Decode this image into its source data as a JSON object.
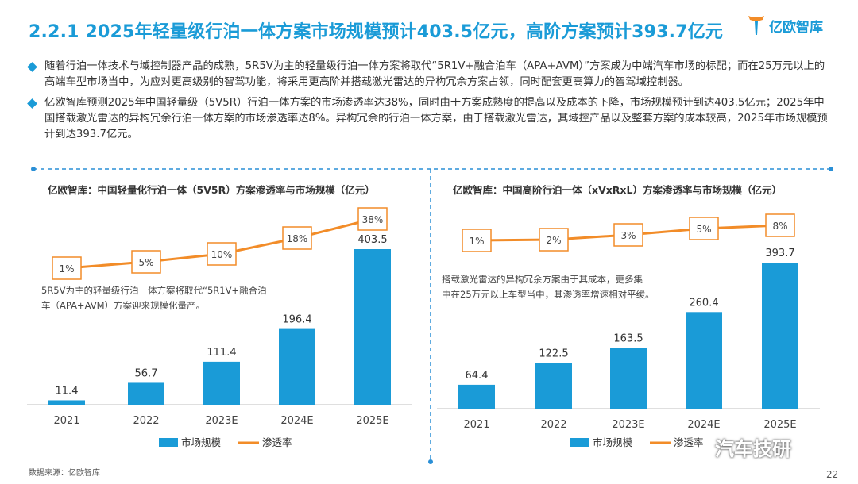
{
  "title": "2.2.1 2025年轻量级行泊一体方案市场规模预计403.5亿元，高阶方案预计393.7亿元",
  "logo_text": "亿欧智库",
  "bullets": [
    "随着行泊一体技术与域控制器产品的成熟，5R5V为主的轻量级行泊一体方案将取代“5R1V+融合泊车（APA+AVM）”方案成为中端汽车市场的标配；而在25万元以上的高端车型市场当中，为应对更高级别的智驾功能，将采用更高阶并搭载激光雷达的异构冗余方案占领，同时配套更高算力的智驾域控制器。",
    "亿欧智库预测2025年中国轻量级（5V5R）行泊一体方案的市场渗透率达38%，同时由于方案成熟度的提高以及成本的下降，市场规模预计到达403.5亿元；2025年中国搭载激光雷达的异构冗余行泊一体方案的市场渗透率达8%。异构冗余的行泊一体方案，由于搭载激光雷达，其域控产品以及整套方案的成本较高，2025年市场规模预计到达393.7亿元。"
  ],
  "colors": {
    "accent": "#1a9bd7",
    "line": "#f28c28",
    "divider": "#2a8fd6"
  },
  "chart_data": [
    {
      "type": "bar",
      "title": "亿欧智库：中国轻量化行泊一体（5V5R）方案渗透率与市场规模（亿元）",
      "categories": [
        "2021",
        "2022",
        "2023E",
        "2024E",
        "2025E"
      ],
      "series": [
        {
          "name": "市场规模",
          "type": "bar",
          "values": [
            11.4,
            56.7,
            111.4,
            196.4,
            403.5
          ],
          "labels": [
            "11.4",
            "56.7",
            "111.4",
            "196.4",
            "403.5"
          ]
        },
        {
          "name": "渗透率",
          "type": "line",
          "values": [
            1,
            5,
            10,
            18,
            38
          ],
          "labels": [
            "1%",
            "5%",
            "10%",
            "18%",
            "38%"
          ]
        }
      ],
      "annotation": "5R5V为主的轻量级行泊一体方案将取代“5R1V+融合泊车（APA+AVM）方案迎来规模化量产。",
      "legend": [
        "市场规模",
        "渗透率"
      ],
      "legend_position": "bottom"
    },
    {
      "type": "bar",
      "title": "亿欧智库：中国高阶行泊一体（xVxRxL）方案渗透率与市场规模（亿元）",
      "categories": [
        "2021",
        "2022",
        "2023E",
        "2024E",
        "2025E"
      ],
      "series": [
        {
          "name": "市场规模",
          "type": "bar",
          "values": [
            64.4,
            122.5,
            163.5,
            260.4,
            393.7
          ],
          "labels": [
            "64.4",
            "122.5",
            "163.5",
            "260.4",
            "393.7"
          ]
        },
        {
          "name": "渗透率",
          "type": "line",
          "values": [
            1,
            2,
            3,
            5,
            8
          ],
          "labels": [
            "1%",
            "2%",
            "3%",
            "5%",
            "8%"
          ]
        }
      ],
      "annotation": "搭载激光雷达的异构冗余方案由于其成本，更多集中在25万元以上车型当中，其渗透率增速相对平缓。",
      "legend": [
        "市场规模",
        "渗透率"
      ],
      "legend_position": "bottom"
    }
  ],
  "source": "数据来源：亿欧智库",
  "page_number": "22",
  "watermark": "汽车技研"
}
